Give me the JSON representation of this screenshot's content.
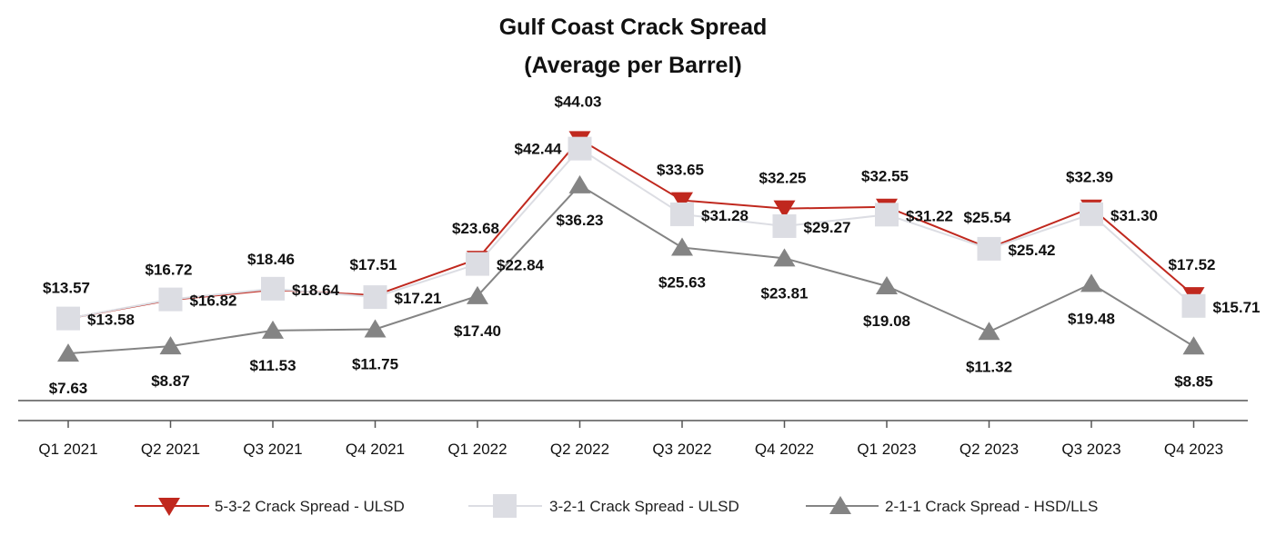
{
  "chart_data": {
    "type": "line",
    "title": "Gulf Coast Crack Spread",
    "subtitle": "(Average per Barrel)",
    "xlabel": "",
    "ylabel": "",
    "ylim": [
      0,
      50
    ],
    "grid": false,
    "legend_position": "bottom",
    "categories": [
      "Q1 2021",
      "Q2 2021",
      "Q3 2021",
      "Q4 2021",
      "Q1 2022",
      "Q2 2022",
      "Q3 2022",
      "Q4 2022",
      "Q1 2023",
      "Q2 2023",
      "Q3 2023",
      "Q4 2023"
    ],
    "series": [
      {
        "name": "5-3-2 Crack Spread - ULSD",
        "color": "#c0281e",
        "marker": "triangle-down",
        "values": [
          13.57,
          16.72,
          18.46,
          17.51,
          23.68,
          44.03,
          33.65,
          32.25,
          32.55,
          25.54,
          32.39,
          17.52
        ],
        "labels": [
          "$13.57",
          "$16.72",
          "$18.46",
          "$17.51",
          "$23.68",
          "$44.03",
          "$33.65",
          "$32.25",
          "$32.55",
          "$25.54",
          "$32.39",
          "$17.52"
        ]
      },
      {
        "name": "3-2-1 Crack Spread - ULSD",
        "color": "#dcdde3",
        "marker": "square",
        "values": [
          13.58,
          16.82,
          18.64,
          17.21,
          22.84,
          42.44,
          31.28,
          29.27,
          31.22,
          25.42,
          31.3,
          15.71
        ],
        "labels": [
          "$13.58",
          "$16.82",
          "$18.64",
          "$17.21",
          "$22.84",
          "$42.44",
          "$31.28",
          "$29.27",
          "$31.22",
          "$25.42",
          "$31.30",
          "$15.71"
        ]
      },
      {
        "name": "2-1-1 Crack Spread - HSD/LLS",
        "color": "#848484",
        "marker": "triangle-up",
        "values": [
          7.63,
          8.87,
          11.53,
          11.75,
          17.4,
          36.23,
          25.63,
          23.81,
          19.08,
          11.32,
          19.48,
          8.85
        ],
        "labels": [
          "$7.63",
          "$8.87",
          "$11.53",
          "$11.75",
          "$17.40",
          "$36.23",
          "$25.63",
          "$23.81",
          "$19.08",
          "$11.32",
          "$19.48",
          "$8.85"
        ]
      }
    ]
  }
}
